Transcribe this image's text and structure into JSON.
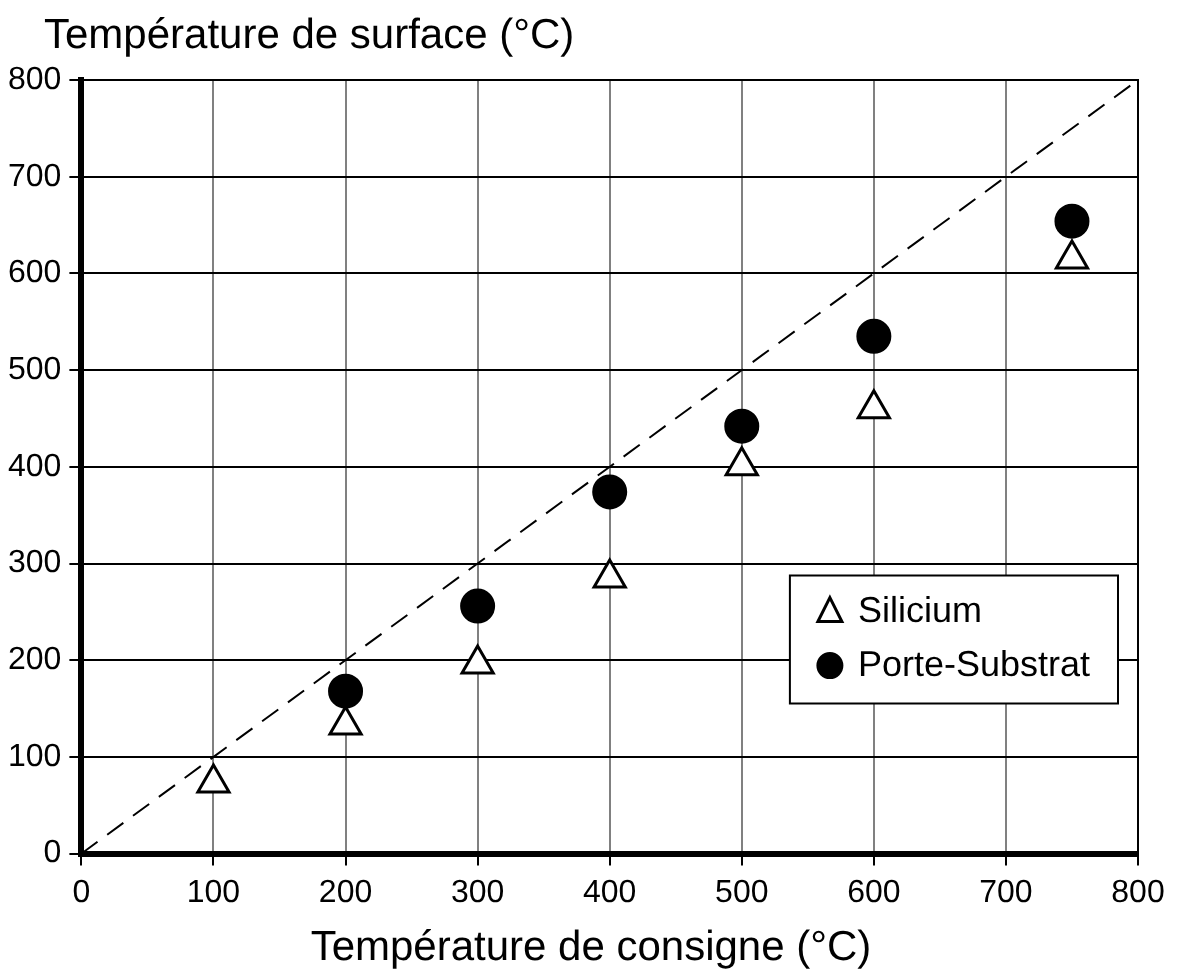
{
  "chart_data": {
    "type": "scatter",
    "xlabel": "Température de consigne (°C)",
    "ylabel": "Température de surface (°C)",
    "x": [
      100,
      200,
      300,
      400,
      500,
      600,
      750
    ],
    "series": [
      {
        "name": "Silicium",
        "color": "#000000",
        "marker": "triangle",
        "values": [
          73,
          133,
          196,
          285,
          401,
          460,
          615
        ]
      },
      {
        "name": "Porte-Substrat",
        "color": "#000000",
        "marker": "circle",
        "values": [
          null,
          168,
          256,
          374,
          442,
          535,
          654
        ]
      },
      {
        "type": "line",
        "color": "#000000",
        "line_style": "dashed",
        "marker": "none",
        "x": [
          0,
          800
        ],
        "values": [
          0,
          800
        ]
      }
    ],
    "xlim": [
      0,
      800
    ],
    "xticks": [
      0,
      100,
      200,
      300,
      400,
      500,
      600,
      700,
      800
    ],
    "ylim": [
      0,
      800
    ],
    "yticks": [
      0,
      100,
      200,
      300,
      400,
      500,
      600,
      700,
      800
    ],
    "grid": true,
    "legend": "bottom right"
  }
}
